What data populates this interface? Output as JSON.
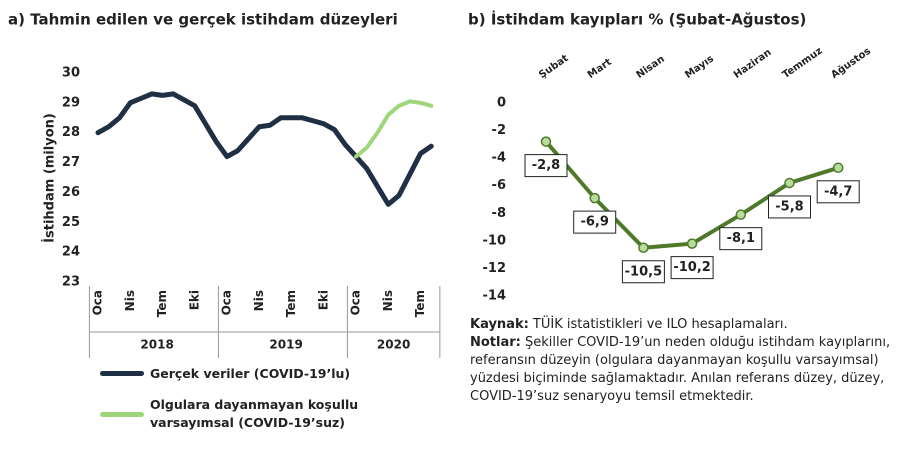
{
  "chart_data": [
    {
      "type": "line",
      "title": "a) Tahmin edilen ve gerçek istihdam düzeyleri",
      "y_label": "İstihdam (milyon)",
      "categories": [
        "Oca",
        null,
        null,
        "Nis",
        null,
        null,
        "Tem",
        null,
        null,
        "Eki",
        null,
        null,
        "Oca",
        null,
        null,
        "Nis",
        null,
        null,
        "Tem",
        null,
        null,
        "Eki",
        null,
        null,
        "Oca",
        null,
        null,
        "Nis",
        null,
        null,
        "Tem",
        null
      ],
      "years": [
        "2018",
        "2019",
        "2020"
      ],
      "ylim": [
        23,
        30
      ],
      "yticks": [
        23,
        24,
        25,
        26,
        27,
        28,
        29,
        30
      ],
      "series": [
        {
          "name": "Gerçek veriler (COVID-19’lu)",
          "color": "#1f3044",
          "values": [
            28.0,
            28.2,
            28.5,
            29.0,
            29.15,
            29.3,
            29.25,
            29.3,
            29.1,
            28.9,
            28.3,
            27.7,
            27.2,
            27.4,
            27.8,
            28.2,
            28.25,
            28.5,
            28.5,
            28.5,
            28.4,
            28.3,
            28.1,
            27.6,
            27.2,
            26.8,
            26.2,
            25.6,
            25.9,
            26.6,
            27.3,
            27.55
          ]
        },
        {
          "name": "Olgulara dayanmayan koşullu varsayımsal (COVID-19’suz)",
          "color": "#9fd67c",
          "values": [
            null,
            null,
            null,
            null,
            null,
            null,
            null,
            null,
            null,
            null,
            null,
            null,
            null,
            null,
            null,
            null,
            null,
            null,
            null,
            null,
            null,
            null,
            null,
            null,
            27.2,
            27.5,
            28.0,
            28.6,
            28.9,
            29.05,
            29.0,
            28.9
          ]
        }
      ]
    },
    {
      "type": "line",
      "title": "b) İstihdam kayıpları % (Şubat-Ağustos)",
      "categories": [
        "Şubat",
        "Mart",
        "Nisan",
        "Mayıs",
        "Haziran",
        "Temmuz",
        "Ağustos"
      ],
      "values": [
        -2.8,
        -6.9,
        -10.5,
        -10.2,
        -8.1,
        -5.8,
        -4.7
      ],
      "value_labels": [
        "-2,8",
        "-6,9",
        "-10,5",
        "-10,2",
        "-8,1",
        "-5,8",
        "-4,7"
      ],
      "color": "#4e7a2a",
      "marker_color": "#b8dc9e",
      "ylim": [
        -14,
        0
      ],
      "yticks": [
        -14,
        -12,
        -10,
        -8,
        -6,
        -4,
        -2,
        0
      ]
    }
  ],
  "notes": {
    "source_label": "Kaynak:",
    "source_text": " TÜİK istatistikleri ve ILO hesaplamaları.",
    "notes_label": "Notlar:",
    "notes_text": " Şekiller COVID-19’un neden olduğu istihdam kayıplarını, referansın düzeyin (olgulara dayanmayan koşullu varsayımsal) yüzdesi biçiminde sağlamaktadır. Anılan referans düzey, düzey, COVID-19’suz senaryoyu temsil etmektedir."
  }
}
